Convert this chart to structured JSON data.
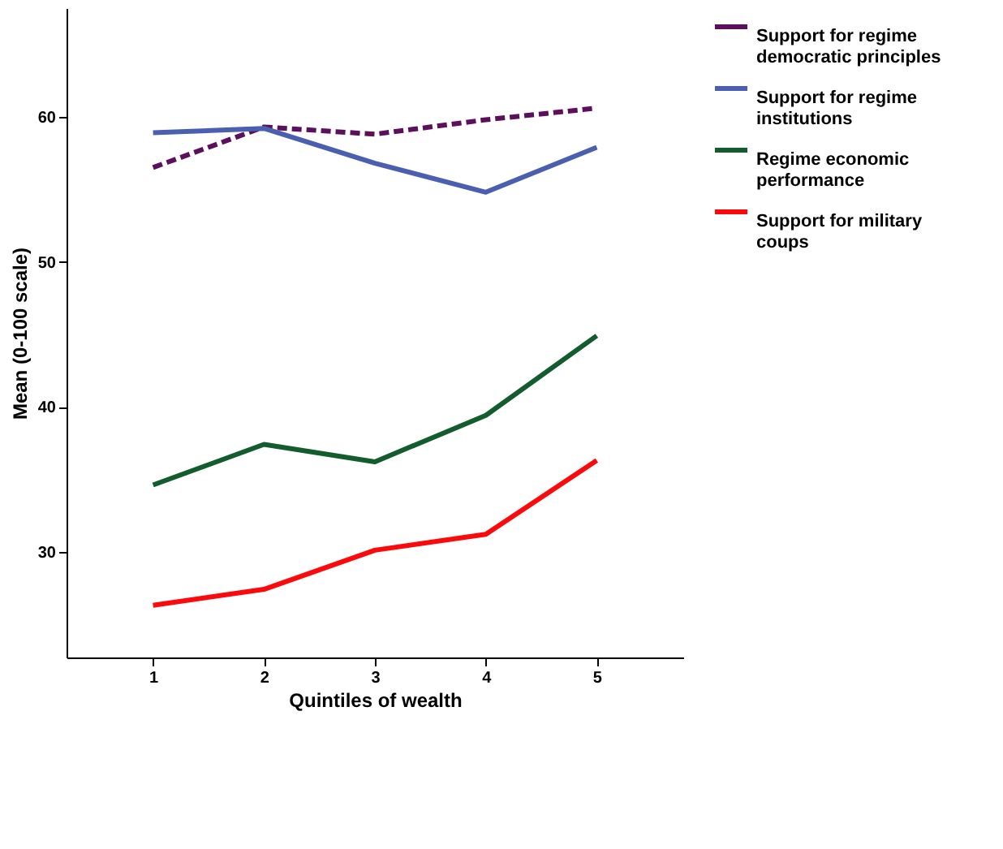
{
  "chart_data": {
    "type": "line",
    "xlabel": "Quintiles of wealth",
    "ylabel": "Mean (0-100 scale)",
    "x": [
      1,
      2,
      3,
      4,
      5
    ],
    "xlim": [
      0.22,
      5.78
    ],
    "xticks": [
      1,
      2,
      3,
      4,
      5
    ],
    "ylim": [
      22.7,
      67.5
    ],
    "yticks": [
      30,
      40,
      50,
      60
    ],
    "grid": false,
    "legend": "top right",
    "marker": "none",
    "series": [
      {
        "name": "Support for regime democratic principles",
        "color": "#5c0f5c",
        "line_style": "dashed",
        "values": [
          56.5,
          59.3,
          58.8,
          59.8,
          60.6
        ]
      },
      {
        "name": "Support for regime institutions",
        "color": "#4a5fb0",
        "line_style": "solid",
        "values": [
          58.9,
          59.2,
          56.8,
          54.8,
          57.9
        ]
      },
      {
        "name": "Regime economic performance",
        "color": "#135c2e",
        "line_style": "solid",
        "values": [
          34.6,
          37.4,
          36.2,
          39.4,
          44.9
        ]
      },
      {
        "name": "Support for military coups",
        "color": "#fa0a0a",
        "line_style": "solid",
        "values": [
          26.3,
          27.4,
          30.1,
          31.2,
          36.3
        ]
      }
    ]
  }
}
